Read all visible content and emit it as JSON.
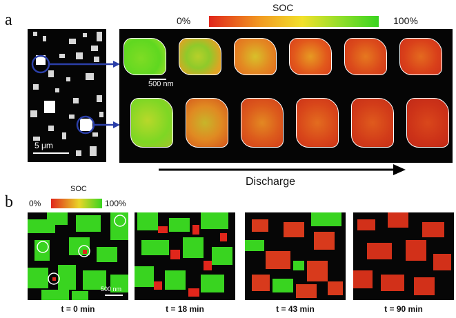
{
  "panel_a": {
    "letter": "a",
    "soc_title": "SOC",
    "soc_min": "0%",
    "soc_max": "100%",
    "scale_5um": "5 μm",
    "scale_500nm": "500 nm",
    "axis_label": "Discharge",
    "colors": {
      "low": "#e0261b",
      "mid": "#f2d12b",
      "high": "#39d420"
    }
  },
  "panel_b": {
    "letter": "b",
    "soc_title": "SOC",
    "soc_min": "0%",
    "soc_max": "100%",
    "scale_500nm": "500 nm",
    "frames": [
      {
        "time": "t = 0 min",
        "soc": 0.8
      },
      {
        "time": "t = 18 min",
        "soc": 0.55
      },
      {
        "time": "t = 43 min",
        "soc": 0.25
      },
      {
        "time": "t = 90 min",
        "soc": 0.05
      }
    ]
  }
}
